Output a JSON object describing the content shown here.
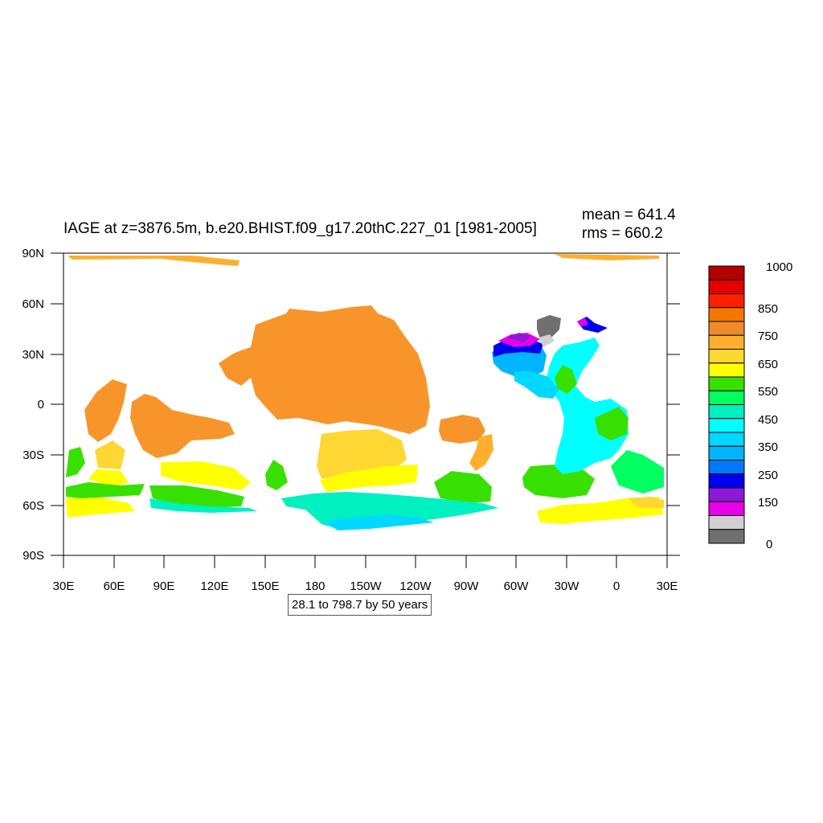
{
  "title": "IAGE at z=3876.5m, b.e20.BHIST.f09_g17.20thC.227_01 [1981-2005]",
  "stats": {
    "mean": "mean = 641.4",
    "rms": "rms = 660.2"
  },
  "range_label": "28.1 to 798.7 by 50 years",
  "map": {
    "lon_labels": [
      "30E",
      "60E",
      "90E",
      "120E",
      "150E",
      "180",
      "150W",
      "120W",
      "90W",
      "60W",
      "30W",
      "0",
      "30E"
    ],
    "lat_labels": [
      "90N",
      "60N",
      "30N",
      "0",
      "30S",
      "60S",
      "90S"
    ]
  },
  "colorbar": {
    "colors": [
      "#b40000",
      "#e40000",
      "#ff2000",
      "#f47800",
      "#f08c28",
      "#ffaf2d",
      "#ffd733",
      "#ffff00",
      "#38e000",
      "#00ff60",
      "#00f0c0",
      "#00ffff",
      "#00d8ff",
      "#00b4ff",
      "#0078ff",
      "#0000f0",
      "#8c18d8",
      "#e800e8",
      "#d0d0d0",
      "#707070"
    ],
    "labels": [
      "1000",
      "850",
      "750",
      "650",
      "550",
      "450",
      "350",
      "250",
      "150",
      "0"
    ]
  }
}
